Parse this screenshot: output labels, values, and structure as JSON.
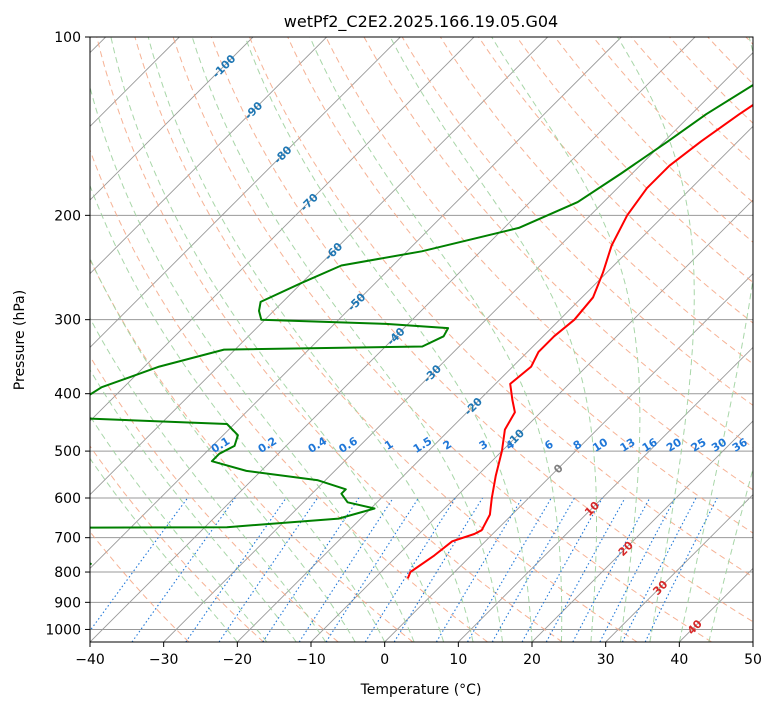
{
  "chart_data": {
    "type": "line",
    "subtype": "skew-T log-p diagram",
    "title": "wetPf2_C2E2.2025.166.19.05.G04",
    "xlabel": "Temperature (°C)",
    "ylabel": "Pressure (hPa)",
    "xlim": [
      -40,
      50
    ],
    "ylim": [
      1050,
      100
    ],
    "yscale": "log",
    "grid": true,
    "x_ticks": [
      "−40",
      "−30",
      "−20",
      "−10",
      "0",
      "10",
      "20",
      "30",
      "40",
      "50"
    ],
    "y_ticks": [
      "100",
      "200",
      "300",
      "400",
      "500",
      "600",
      "700",
      "800",
      "900",
      "1000"
    ],
    "pressure_ticks": [
      100,
      200,
      300,
      400,
      500,
      600,
      700,
      800,
      900,
      1000
    ],
    "colors": {
      "temperature": "#ff0000",
      "dewpoint": "#008000",
      "isotherms": "#999999",
      "dry_adiabats": "#f4a582",
      "moist_adiabats": "#9fd29f",
      "mixing_ratio": "#1f77d8",
      "isotherm_labels": "#1f77b4",
      "warm_labels": "#d62728",
      "zero_label": "#7f7f7f"
    },
    "isotherm_labels": [
      {
        "t": -100,
        "p": 112,
        "text": "-100"
      },
      {
        "t": -90,
        "p": 133,
        "text": "-90"
      },
      {
        "t": -80,
        "p": 158,
        "text": "-80"
      },
      {
        "t": -70,
        "p": 190,
        "text": "-70"
      },
      {
        "t": -60,
        "p": 230,
        "text": "-60"
      },
      {
        "t": -50,
        "p": 280,
        "text": "-50"
      },
      {
        "t": -40,
        "p": 320,
        "text": "-40"
      },
      {
        "t": -30,
        "p": 370,
        "text": "-30"
      },
      {
        "t": -20,
        "p": 420,
        "text": "-20"
      },
      {
        "t": -10,
        "p": 475,
        "text": "-10"
      },
      {
        "t": 0,
        "p": 535,
        "text": "0"
      },
      {
        "t": 10,
        "p": 625,
        "text": "10"
      },
      {
        "t": 20,
        "p": 730,
        "text": "20"
      },
      {
        "t": 30,
        "p": 850,
        "text": "30"
      },
      {
        "t": 40,
        "p": 990,
        "text": "40"
      }
    ],
    "mixing_ratio_labels": [
      "0.1",
      "0.2",
      "0.4",
      "0.6",
      "1",
      "1.5",
      "2",
      "3",
      "4",
      "6",
      "8",
      "10",
      "13",
      "16",
      "20",
      "25",
      "30",
      "36"
    ],
    "series": [
      {
        "name": "",
        "role": "temperature",
        "points": [
          [
            -18.0,
            100
          ],
          [
            -20.5,
            110
          ],
          [
            -21.5,
            120
          ],
          [
            -23.5,
            135
          ],
          [
            -25.0,
            150
          ],
          [
            -26.0,
            165
          ],
          [
            -26.0,
            180
          ],
          [
            -25.0,
            200
          ],
          [
            -23.0,
            225
          ],
          [
            -20.5,
            250
          ],
          [
            -18.5,
            275
          ],
          [
            -18.0,
            300
          ],
          [
            -18.5,
            320
          ],
          [
            -18.5,
            340
          ],
          [
            -17.5,
            360
          ],
          [
            -18.0,
            385
          ],
          [
            -15.5,
            410
          ],
          [
            -13.5,
            430
          ],
          [
            -12.5,
            460
          ],
          [
            -10.0,
            500
          ],
          [
            -7.5,
            550
          ],
          [
            -5.0,
            600
          ],
          [
            -3.0,
            640
          ],
          [
            -2.0,
            680
          ],
          [
            -2.5,
            690
          ],
          [
            -4.5,
            710
          ],
          [
            -5.0,
            750
          ],
          [
            -6.0,
            800
          ],
          [
            -5.5,
            820
          ]
        ]
      },
      {
        "name": "",
        "role": "dewpoint",
        "points": [
          [
            -21.5,
            100
          ],
          [
            -24.0,
            110
          ],
          [
            -25.5,
            120
          ],
          [
            -28.0,
            135
          ],
          [
            -29.5,
            150
          ],
          [
            -31.5,
            170
          ],
          [
            -33.5,
            190
          ],
          [
            -38.0,
            210
          ],
          [
            -48.0,
            230
          ],
          [
            -57.0,
            243
          ],
          [
            -60.0,
            260
          ],
          [
            -63.0,
            280
          ],
          [
            -62.0,
            290
          ],
          [
            -60.5,
            300
          ],
          [
            -43.0,
            305
          ],
          [
            -34.0,
            310
          ],
          [
            -33.5,
            320
          ],
          [
            -35.0,
            333
          ],
          [
            -61.5,
            337
          ],
          [
            -68.0,
            360
          ],
          [
            -73.0,
            390
          ],
          [
            -74.0,
            410
          ],
          [
            -72.0,
            440
          ],
          [
            -51.0,
            450
          ],
          [
            -48.0,
            470
          ],
          [
            -47.0,
            490
          ],
          [
            -48.0,
            505
          ],
          [
            -48.0,
            520
          ],
          [
            -42.0,
            540
          ],
          [
            -31.0,
            560
          ],
          [
            -26.0,
            580
          ],
          [
            -26.0,
            590
          ],
          [
            -24.0,
            610
          ],
          [
            -19.5,
            625
          ],
          [
            -23.0,
            650
          ],
          [
            -37.0,
            672
          ],
          [
            -80.0,
            675
          ],
          [
            -80.0,
            740
          ],
          [
            -52.5,
            760
          ],
          [
            -50.5,
            775
          ],
          [
            -55.0,
            795
          ],
          [
            -69.0,
            805
          ],
          [
            -64.0,
            815
          ],
          [
            -55.0,
            815
          ]
        ]
      }
    ]
  }
}
